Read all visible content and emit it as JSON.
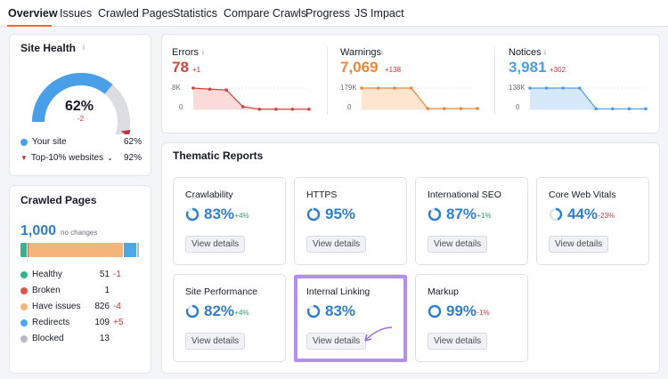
{
  "tabs": [
    {
      "label": "Overview",
      "active": true
    },
    {
      "label": "Issues"
    },
    {
      "label": "Crawled Pages"
    },
    {
      "label": "Statistics"
    },
    {
      "label": "Compare Crawls"
    },
    {
      "label": "Progress"
    },
    {
      "label": "JS Impact"
    }
  ],
  "info_glyph": "i",
  "site_health": {
    "title": "Site Health",
    "score": "62%",
    "score_value": 62,
    "delta": "-2",
    "top10_value": 92,
    "legend": [
      {
        "label": "Your site",
        "value": "62%",
        "color": "#4a9fe9"
      },
      {
        "label": "Top-10% websites",
        "value": "92%",
        "color": "#c0353b"
      }
    ]
  },
  "crawled_pages": {
    "title": "Crawled Pages",
    "count": "1,000",
    "change": "no changes",
    "rows": [
      {
        "label": "Healthy",
        "value": "51",
        "delta": "-1",
        "delta_type": "red",
        "color": "#35b48b"
      },
      {
        "label": "Broken",
        "value": "1",
        "delta": "",
        "delta_type": "",
        "color": "#d9574f"
      },
      {
        "label": "Have issues",
        "value": "826",
        "delta": "-4",
        "delta_type": "red",
        "color": "#f5b57a"
      },
      {
        "label": "Redirects",
        "value": "109",
        "delta": "+5",
        "delta_type": "red",
        "color": "#4aa8e8"
      },
      {
        "label": "Blocked",
        "value": "13",
        "delta": "",
        "delta_type": "",
        "color": "#b9bbc4"
      }
    ]
  },
  "errors": {
    "label": "Errors",
    "value": "78",
    "delta": "+1",
    "ymax": "8K",
    "ymin": "0",
    "color": "#d8423a",
    "fill": "#fbdada",
    "series": [
      7.9,
      7.5,
      7.2,
      1,
      0.08,
      0.08,
      0.08,
      0.08
    ]
  },
  "warnings": {
    "label": "Warnings",
    "value": "7,069",
    "delta": "+138",
    "ymax": "179K",
    "ymin": "0",
    "color": "#ef8638",
    "fill": "#fde5cf",
    "series": [
      179,
      179,
      179,
      179,
      7,
      7,
      7,
      7
    ]
  },
  "notices": {
    "label": "Notices",
    "value": "3,981",
    "delta": "+302",
    "ymax": "138K",
    "ymin": "0",
    "color": "#4a9fe9",
    "fill": "#d5e9fb",
    "series": [
      138,
      138,
      138,
      138,
      4,
      4,
      4,
      4
    ]
  },
  "thematic": {
    "title": "Thematic Reports",
    "button_label": "View details",
    "reports": [
      {
        "title": "Crawlability",
        "pct": "83%",
        "value": 83,
        "delta": "+4%",
        "delta_type": "green"
      },
      {
        "title": "HTTPS",
        "pct": "95%",
        "value": 95,
        "delta": "",
        "delta_type": ""
      },
      {
        "title": "International SEO",
        "pct": "87%",
        "value": 87,
        "delta": "+1%",
        "delta_type": "green"
      },
      {
        "title": "Core Web Vitals",
        "pct": "44%",
        "value": 44,
        "delta": "-23%",
        "delta_type": "red"
      },
      {
        "title": "Site Performance",
        "pct": "82%",
        "value": 82,
        "delta": "+4%",
        "delta_type": "green"
      },
      {
        "title": "Internal Linking",
        "pct": "83%",
        "value": 83,
        "delta": "",
        "delta_type": ""
      },
      {
        "title": "Markup",
        "pct": "99%",
        "value": 99,
        "delta": "-1%",
        "delta_type": "red"
      }
    ]
  },
  "colors": {
    "accent_tab": "#ff642d",
    "ring": "#2d7fd3",
    "highlight": "#b48ff1"
  }
}
